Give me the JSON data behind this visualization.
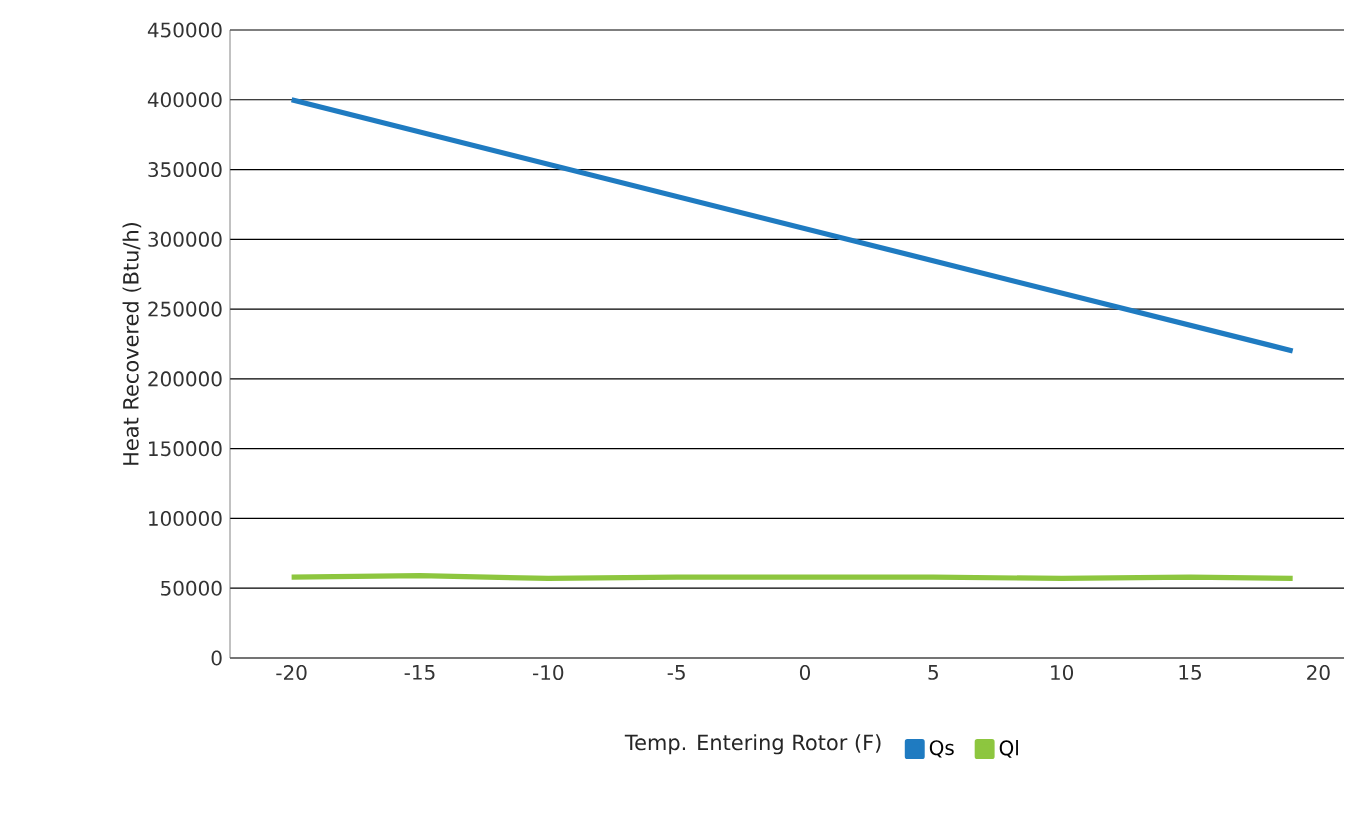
{
  "chart_data": {
    "type": "line",
    "xlabel": "Temp. Entering Rotor (F)",
    "ylabel": "Heat Recovered (Btu/h)",
    "xlim": [
      -22.4,
      21
    ],
    "xticks": [
      -20,
      -15,
      -10,
      -5,
      0,
      5,
      10,
      15,
      20
    ],
    "ylim": [
      0,
      450000
    ],
    "yticks": [
      0,
      50000,
      100000,
      150000,
      200000,
      250000,
      300000,
      350000,
      400000,
      450000
    ],
    "grid": "y",
    "legend": "bottom",
    "marker": "none",
    "line_style": "solid",
    "series": [
      {
        "name": "Qs",
        "color": "#1f7bc1",
        "x": [
          -20,
          19
        ],
        "values": [
          400000,
          220000
        ]
      },
      {
        "name": "Ql",
        "color": "#8dc63f",
        "x": [
          -20,
          -15,
          -10,
          -5,
          0,
          5,
          10,
          15,
          19
        ],
        "values": [
          58000,
          59000,
          57000,
          58000,
          58000,
          58000,
          57000,
          58000,
          57000
        ]
      }
    ]
  }
}
